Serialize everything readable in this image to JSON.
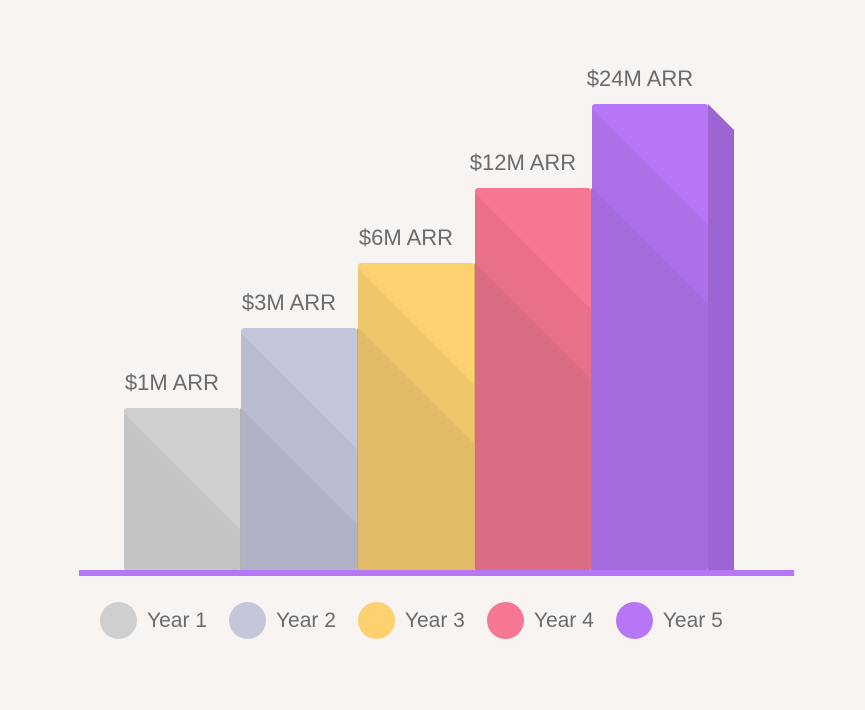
{
  "chart_data": {
    "type": "bar",
    "title": "",
    "xlabel": "",
    "ylabel": "",
    "categories": [
      "Year 1",
      "Year 2",
      "Year 3",
      "Year 4",
      "Year 5"
    ],
    "values": [
      1,
      3,
      6,
      12,
      24
    ],
    "relative_heights": [
      0.35,
      0.52,
      0.66,
      0.82,
      1.0
    ],
    "labels": [
      "$1M ARR",
      "$3M ARR",
      "$6M ARR",
      "$12M ARR",
      "$24M ARR"
    ],
    "colors": [
      "#cfcfcf",
      "#c4c7db",
      "#fdd170",
      "#f67791",
      "#b776f5"
    ],
    "baseline_color": "#b776f5",
    "legend": [
      {
        "label": "Year 1",
        "color": "#cfcfcf"
      },
      {
        "label": "Year 2",
        "color": "#c4c7db"
      },
      {
        "label": "Year 3",
        "color": "#fdd170"
      },
      {
        "label": "Year 4",
        "color": "#f67791"
      },
      {
        "label": "Year 5",
        "color": "#b776f5"
      }
    ]
  }
}
